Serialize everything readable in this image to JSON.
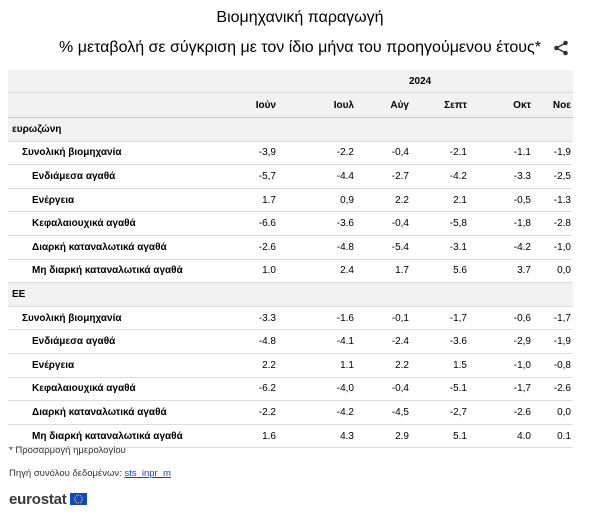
{
  "title": "Βιομηχανική παραγωγή",
  "subtitle": "% μεταβολή σε σύγκριση με τον ίδιο μήνα του προηγούμενου έτους*",
  "table": {
    "year": "2024",
    "months": [
      "Ιούν",
      "Ιουλ",
      "Αύγ",
      "Σεπτ",
      "Οκτ",
      "Νοε"
    ],
    "groups": [
      {
        "label": "ευρωζώνη",
        "rows": [
          {
            "label": "Συνολική βιομηχανία",
            "values": [
              "-3,9",
              "-2.2",
              "-0,4",
              "-2.1",
              "-1.1",
              "-1,9"
            ]
          },
          {
            "label": "Ενδιάμεσα αγαθά",
            "values": [
              "-5,7",
              "-4.4",
              "-2.7",
              "-4.2",
              "-3.3",
              "-2,5"
            ]
          },
          {
            "label": "Ενέργεια",
            "values": [
              "1.7",
              "0,9",
              "2.2",
              "2.1",
              "-0,5",
              "-1.3"
            ]
          },
          {
            "label": "Κεφαλαιουχικά αγαθά",
            "values": [
              "-6.6",
              "-3.6",
              "-0,4",
              "-5,8",
              "-1,8",
              "-2.8"
            ]
          },
          {
            "label": "Διαρκή καταναλωτικά αγαθά",
            "values": [
              "-2.6",
              "-4.8",
              "-5.4",
              "-3.1",
              "-4.2",
              "-1,0"
            ]
          },
          {
            "label": "Μη διαρκή καταναλωτικά αγαθά",
            "values": [
              "1.0",
              "2.4",
              "1.7",
              "5.6",
              "3.7",
              "0,0"
            ]
          }
        ]
      },
      {
        "label": "ΕΕ",
        "rows": [
          {
            "label": "Συνολική βιομηχανία",
            "values": [
              "-3.3",
              "-1.6",
              "-0,1",
              "-1,7",
              "-0,6",
              "-1,7"
            ]
          },
          {
            "label": "Ενδιάμεσα αγαθά",
            "values": [
              "-4.8",
              "-4.1",
              "-2.4",
              "-3.6",
              "-2,9",
              "-1,9"
            ]
          },
          {
            "label": "Ενέργεια",
            "values": [
              "2.2",
              "1.1",
              "2.2",
              "1.5",
              "-1,0",
              "-0,8"
            ]
          },
          {
            "label": "Κεφαλαιουχικά αγαθά",
            "values": [
              "-6.2",
              "-4,0",
              "-0,4",
              "-5.1",
              "-1,7",
              "-2.6"
            ]
          },
          {
            "label": "Διαρκή καταναλωτικά αγαθά",
            "values": [
              "-2.2",
              "-4.2",
              "-4,5",
              "-2,7",
              "-2.6",
              "0,0"
            ]
          },
          {
            "label": "Μη διαρκή καταναλωτικά αγαθά",
            "values": [
              "1.6",
              "4.3",
              "2.9",
              "5.1",
              "4.0",
              "0.1"
            ]
          }
        ]
      }
    ]
  },
  "footnote": "* Προσαρμογή ημερολογίου",
  "source_prefix": "Πηγή συνόλου δεδομένων:",
  "source_link": "sts_inpr_m",
  "logo_text": "eurostat",
  "icons": {
    "share": "share-icon",
    "flag": "eu-flag-icon"
  },
  "colors": {
    "header_bg": "#f2f2f2",
    "link": "#0e47cb",
    "logo": "#3a3a3a"
  }
}
